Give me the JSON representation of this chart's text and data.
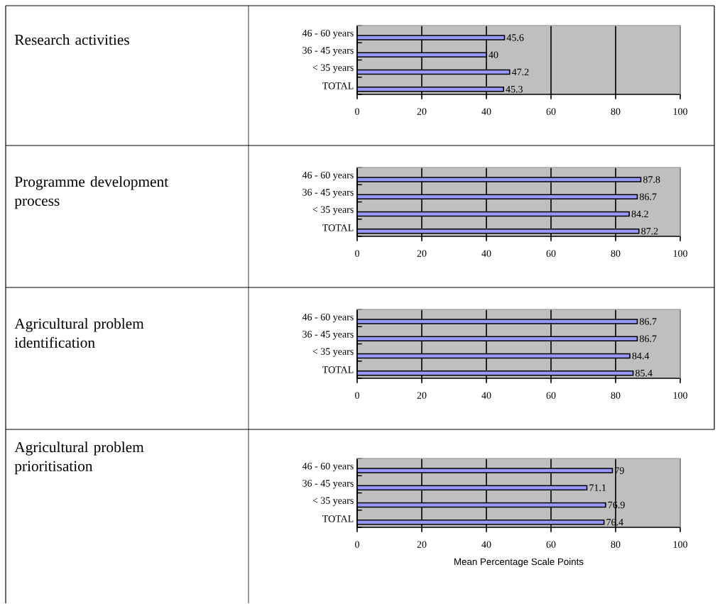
{
  "chart_data": [
    {
      "type": "bar",
      "orientation": "horizontal",
      "annotations": [
        "Research activities"
      ],
      "categories": [
        "46 - 60 years",
        "36 - 45 years",
        "< 35 years",
        "TOTAL"
      ],
      "values": [
        45.6,
        40,
        47.2,
        45.3
      ],
      "color": "#9999ff",
      "xlim": [
        0,
        100
      ],
      "xticks": [
        0,
        20,
        40,
        60,
        80,
        100
      ],
      "grid": "x",
      "data_labels": true
    },
    {
      "type": "bar",
      "orientation": "horizontal",
      "annotations": [
        "Programme development process"
      ],
      "categories": [
        "46 - 60 years",
        "36 - 45 years",
        "< 35 years",
        "TOTAL"
      ],
      "values": [
        87.8,
        86.7,
        84.2,
        87.2
      ],
      "color": "#9999ff",
      "xlim": [
        0,
        100
      ],
      "xticks": [
        0,
        20,
        40,
        60,
        80,
        100
      ],
      "grid": "x",
      "data_labels": true
    },
    {
      "type": "bar",
      "orientation": "horizontal",
      "annotations": [
        "Agricultural problem identification"
      ],
      "categories": [
        "46 - 60 years",
        "36 - 45 years",
        "< 35 years",
        "TOTAL"
      ],
      "values": [
        86.7,
        86.7,
        84.4,
        85.4
      ],
      "color": "#9999ff",
      "xlim": [
        0,
        100
      ],
      "xticks": [
        0,
        20,
        40,
        60,
        80,
        100
      ],
      "grid": "x",
      "data_labels": true
    },
    {
      "type": "bar",
      "orientation": "horizontal",
      "annotations": [
        "Agricultural problem prioritisation"
      ],
      "xlabel": "Mean Percentage Scale Points",
      "categories": [
        "46 - 60 years",
        "36 - 45 years",
        "< 35 years",
        "TOTAL"
      ],
      "values": [
        79,
        71.1,
        76.9,
        76.4
      ],
      "color": "#9999ff",
      "xlim": [
        0,
        100
      ],
      "xticks": [
        0,
        20,
        40,
        60,
        80,
        100
      ],
      "grid": "x",
      "data_labels": true
    }
  ]
}
